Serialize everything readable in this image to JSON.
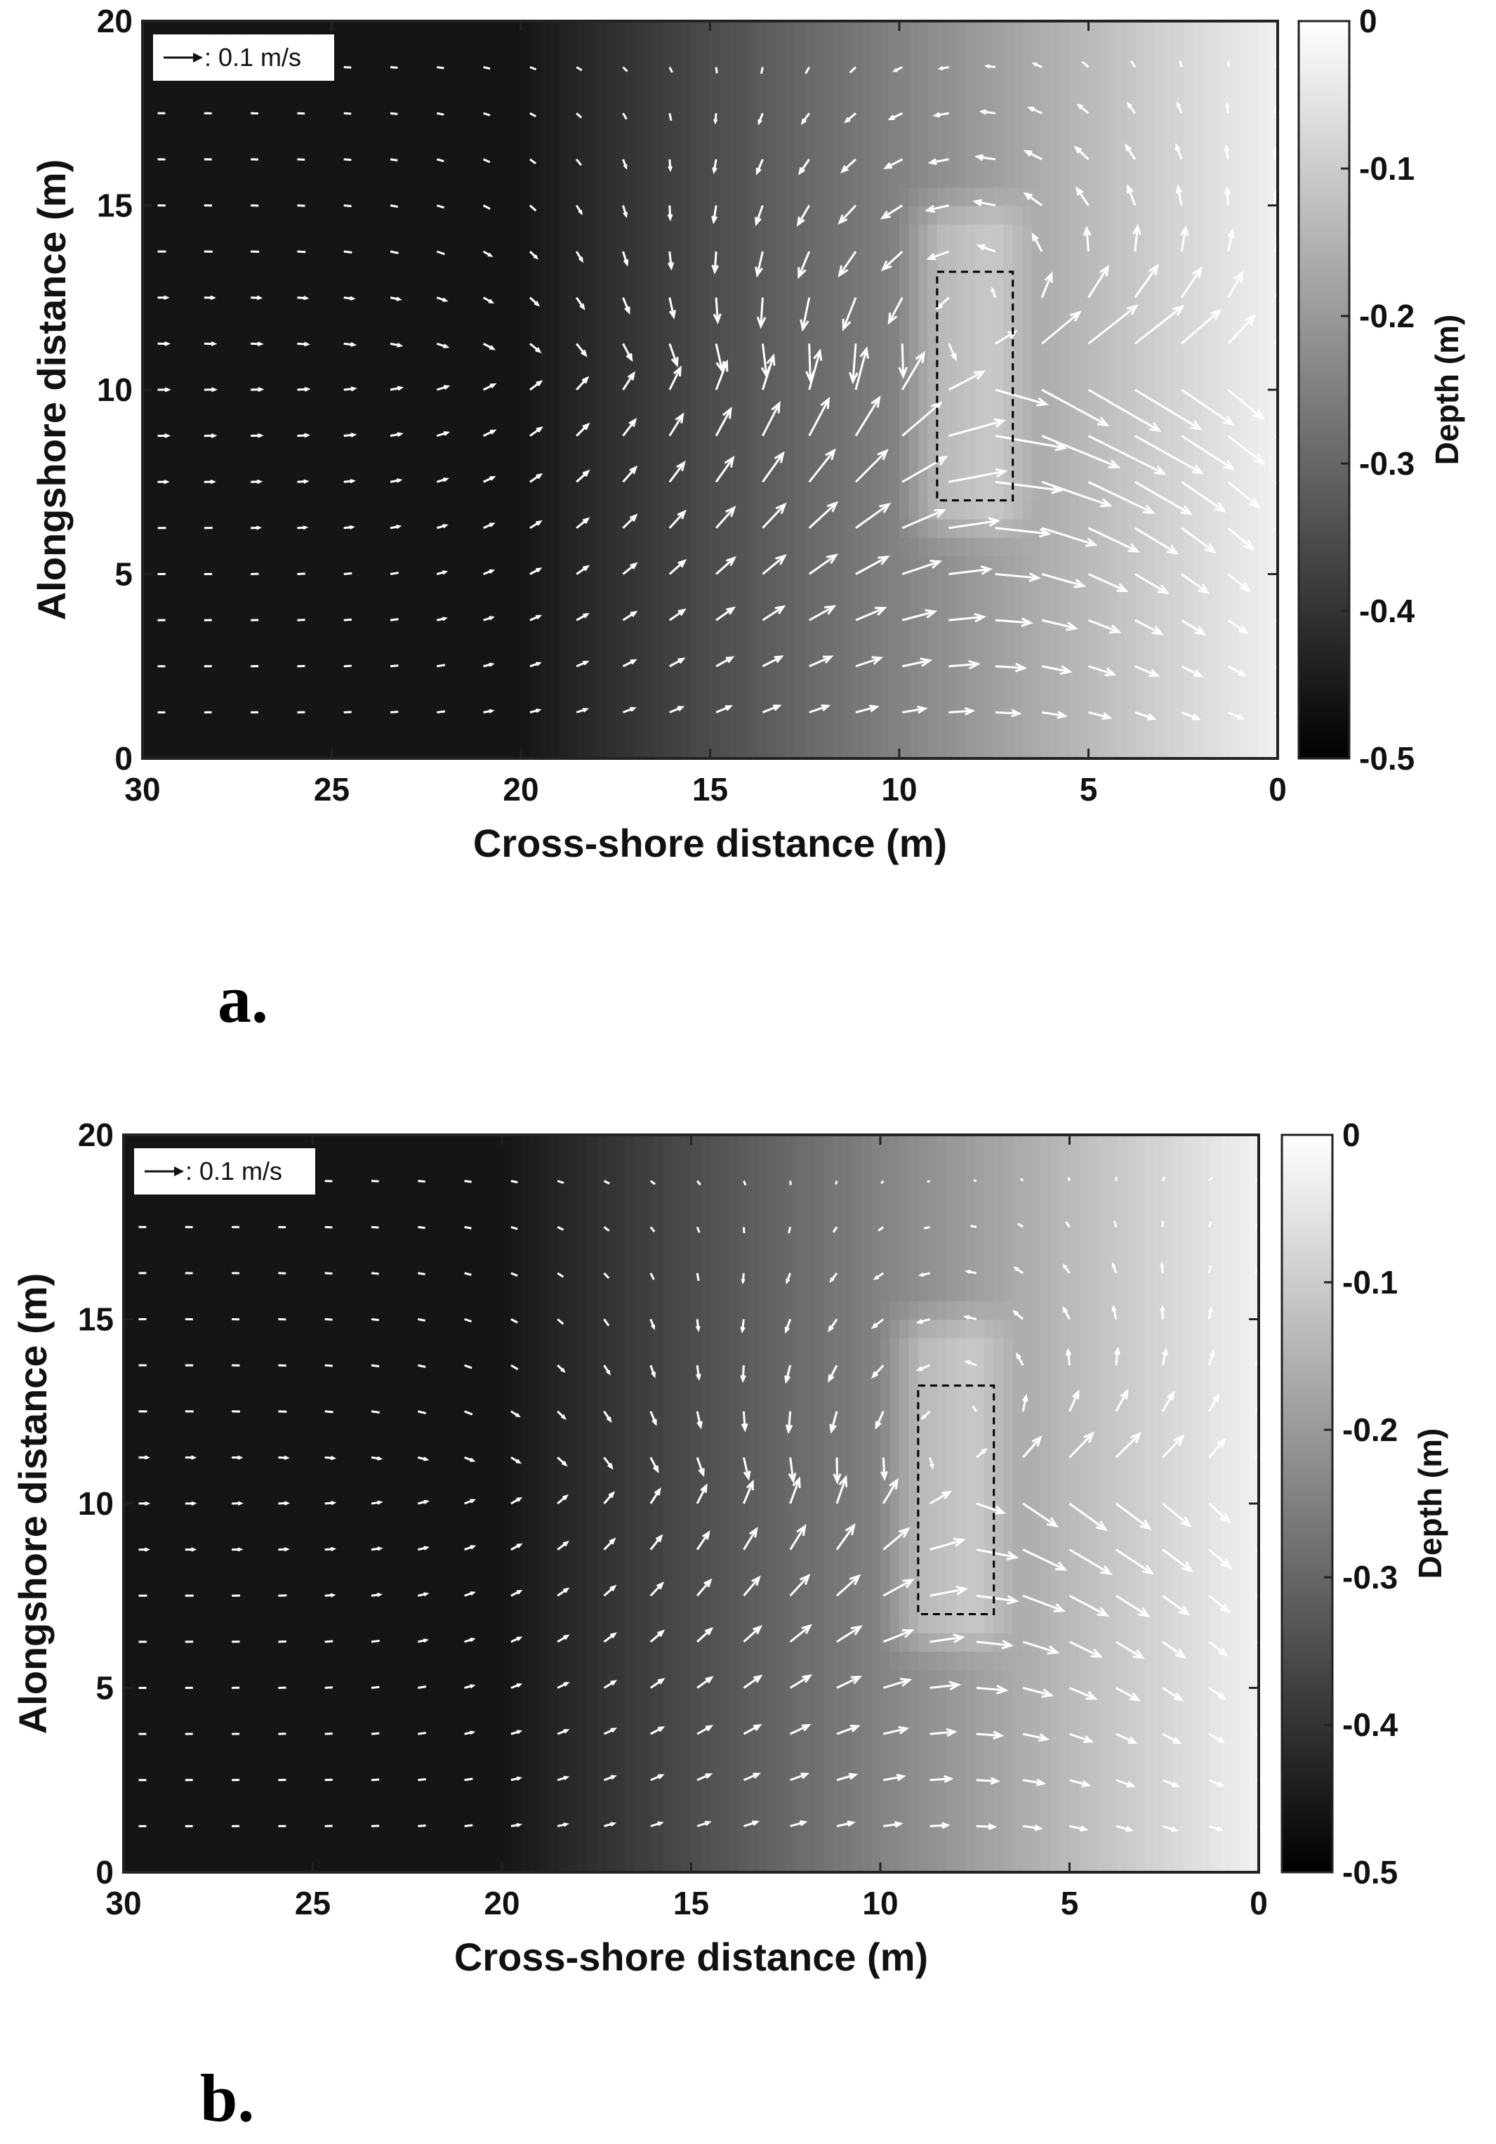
{
  "chart_data": [
    {
      "type": "quiver",
      "panel_label": "a.",
      "xlabel": "Cross-shore distance (m)",
      "ylabel": "Alongshore distance (m)",
      "xlim": [
        30,
        0
      ],
      "ylim": [
        0,
        20
      ],
      "x_reversed": true,
      "xticks": [
        "30",
        "25",
        "20",
        "15",
        "10",
        "5",
        "0"
      ],
      "yticks": [
        "0",
        "5",
        "10",
        "15",
        "20"
      ],
      "colorbar": {
        "label": "Depth (m)",
        "range": [
          -0.5,
          0
        ],
        "ticks": [
          "0",
          "-0.1",
          "-0.2",
          "-0.3",
          "-0.4",
          "-0.5"
        ],
        "colormap": "gray"
      },
      "reference_vector": {
        "text": ": 0.1 m/s",
        "value": 0.1
      },
      "dashed_box": {
        "x": [
          7,
          9
        ],
        "y": [
          7,
          13.2
        ]
      },
      "flow_pattern": {
        "center_x": 8,
        "center_y": 10,
        "jet_speed": 0.1,
        "vortex_strength": 0.055,
        "decay_x": 6,
        "decay_y": 6
      }
    },
    {
      "type": "quiver",
      "panel_label": "b.",
      "xlabel": "Cross-shore distance (m)",
      "ylabel": "Alongshore distance (m)",
      "xlim": [
        30,
        0
      ],
      "ylim": [
        0,
        20
      ],
      "x_reversed": true,
      "xticks": [
        "30",
        "25",
        "20",
        "15",
        "10",
        "5",
        "0"
      ],
      "yticks": [
        "0",
        "5",
        "10",
        "15",
        "20"
      ],
      "colorbar": {
        "label": "Depth (m)",
        "range": [
          -0.5,
          0
        ],
        "ticks": [
          "0",
          "-0.1",
          "-0.2",
          "-0.3",
          "-0.4",
          "-0.5"
        ],
        "colormap": "gray"
      },
      "reference_vector": {
        "text": ": 0.1 m/s",
        "value": 0.1
      },
      "dashed_box": {
        "x": [
          7,
          9
        ],
        "y": [
          7,
          13.2
        ]
      },
      "flow_pattern": {
        "center_x": 8,
        "center_y": 10,
        "jet_speed": 0.045,
        "vortex_strength": 0.035,
        "decay_x": 6,
        "decay_y": 6
      }
    }
  ]
}
